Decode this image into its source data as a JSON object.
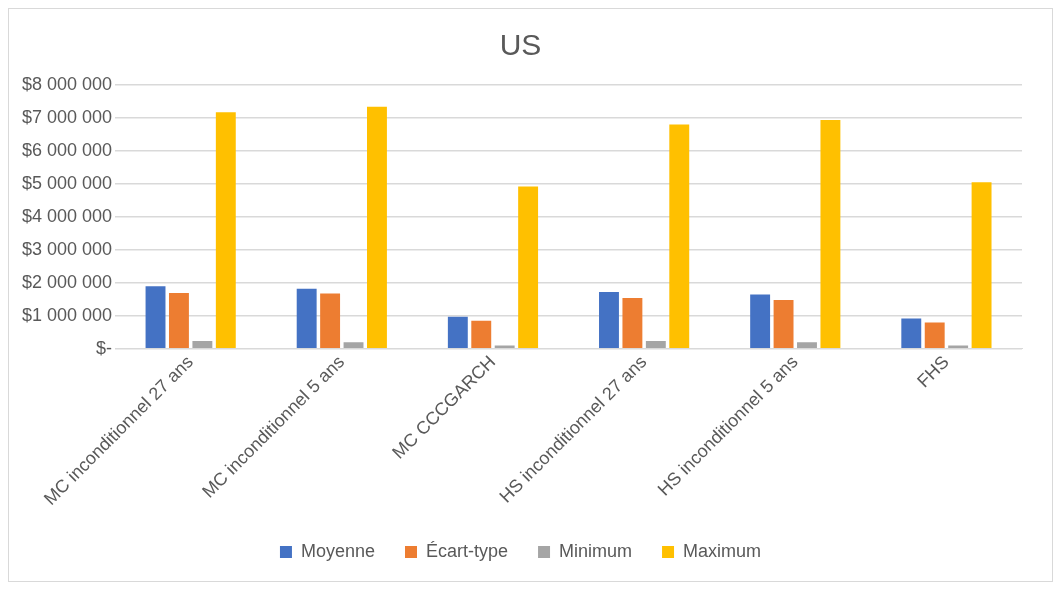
{
  "chart_data": {
    "type": "bar",
    "title": "US",
    "categories": [
      "MC inconditionnel 27 ans",
      "MC inconditionnel 5 ans",
      "MC CCCGARCH",
      "HS inconditionnel 27 ans",
      "HS inconditionnel 5 ans",
      "FHS"
    ],
    "series": [
      {
        "name": "Moyenne",
        "color": "#4472c4",
        "values": [
          1900000,
          1820000,
          970000,
          1720000,
          1650000,
          920000
        ]
      },
      {
        "name": "Écart-type",
        "color": "#ed7d31",
        "values": [
          1690000,
          1680000,
          850000,
          1540000,
          1480000,
          800000
        ]
      },
      {
        "name": "Minimum",
        "color": "#a5a5a5",
        "values": [
          240000,
          200000,
          100000,
          240000,
          200000,
          100000
        ]
      },
      {
        "name": "Maximum",
        "color": "#ffc000",
        "values": [
          7170000,
          7340000,
          4920000,
          6800000,
          6940000,
          5050000
        ]
      }
    ],
    "ylim": [
      0,
      8000000
    ],
    "yticks": [
      {
        "value": 0,
        "label": "$-"
      },
      {
        "value": 1000000,
        "label": "$1 000 000"
      },
      {
        "value": 2000000,
        "label": "$2 000 000"
      },
      {
        "value": 3000000,
        "label": "$3 000 000"
      },
      {
        "value": 4000000,
        "label": "$4 000 000"
      },
      {
        "value": 5000000,
        "label": "$5 000 000"
      },
      {
        "value": 6000000,
        "label": "$6 000 000"
      },
      {
        "value": 7000000,
        "label": "$7 000 000"
      },
      {
        "value": 8000000,
        "label": "$8 000 000"
      }
    ],
    "grid": "y",
    "legend": "bottom"
  }
}
